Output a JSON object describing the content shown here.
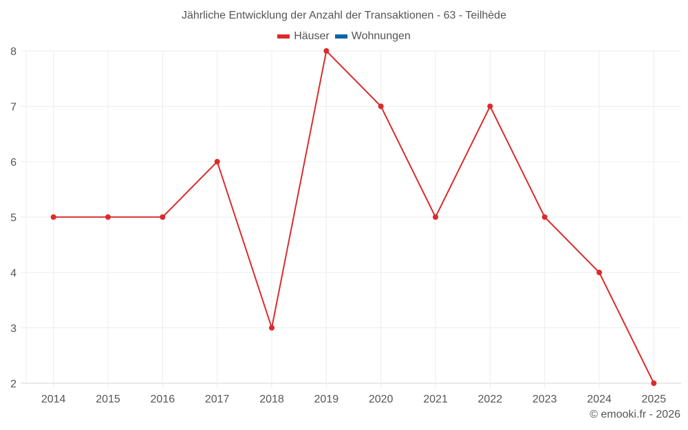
{
  "title": "Jährliche Entwicklung der Anzahl der Transaktionen - 63 - Teilhède",
  "legend": [
    {
      "label": "Häuser",
      "color": "#dc2a2a"
    },
    {
      "label": "Wohnungen",
      "color": "#0a65a6"
    }
  ],
  "credit": "© emooki.fr - 2026",
  "chart_data": {
    "type": "line",
    "title": "Jährliche Entwicklung der Anzahl der Transaktionen - 63 - Teilhède",
    "xlabel": "",
    "ylabel": "",
    "categories": [
      "2014",
      "2015",
      "2016",
      "2017",
      "2018",
      "2019",
      "2020",
      "2021",
      "2022",
      "2023",
      "2024",
      "2025"
    ],
    "series": [
      {
        "name": "Häuser",
        "color": "#dc2a2a",
        "values": [
          5,
          5,
          5,
          6,
          3,
          8,
          7,
          5,
          7,
          5,
          4,
          2
        ]
      },
      {
        "name": "Wohnungen",
        "color": "#0a65a6",
        "values": []
      }
    ],
    "ylim": [
      2,
      8
    ],
    "yticks": [
      2,
      3,
      4,
      5,
      6,
      7,
      8
    ],
    "grid": true,
    "legend_position": "top"
  }
}
